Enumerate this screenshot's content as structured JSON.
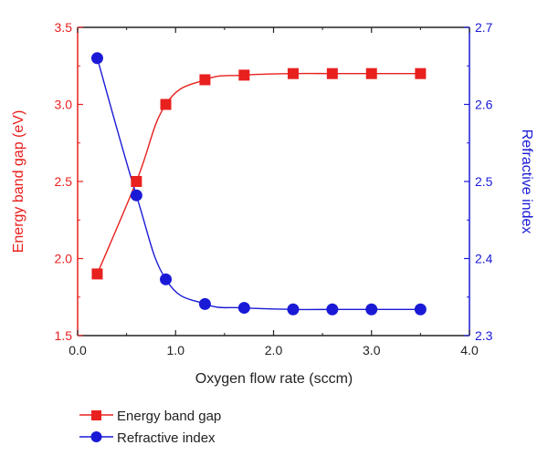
{
  "chart_data": {
    "type": "line",
    "xlabel": "Oxygen flow rate (sccm)",
    "xlim": [
      0.0,
      4.0
    ],
    "xticks": [
      "0.0",
      "1.0",
      "2.0",
      "3.0",
      "4.0"
    ],
    "y_left": {
      "label": "Energy band gap (eV)",
      "lim": [
        1.5,
        3.5
      ],
      "ticks": [
        "1.5",
        "2.0",
        "2.5",
        "3.0",
        "3.5"
      ],
      "color": "#e8201e"
    },
    "y_right": {
      "label": "Refractive index",
      "lim": [
        2.3,
        2.7
      ],
      "ticks": [
        "2.3",
        "2.4",
        "2.5",
        "2.6",
        "2.7"
      ],
      "color": "#1a1ad6"
    },
    "series": [
      {
        "name": "Energy band gap",
        "axis": "left",
        "marker": "square",
        "color": "#e8201e",
        "x": [
          0.2,
          0.6,
          0.9,
          1.3,
          1.7,
          2.2,
          2.6,
          3.0,
          3.5
        ],
        "y": [
          1.9,
          2.5,
          3.0,
          3.16,
          3.19,
          3.2,
          3.2,
          3.2,
          3.2
        ]
      },
      {
        "name": "Refractive index",
        "axis": "right",
        "marker": "circle",
        "color": "#1a1ad6",
        "x": [
          0.2,
          0.6,
          0.9,
          1.3,
          1.7,
          2.2,
          2.6,
          3.0,
          3.5
        ],
        "y": [
          2.66,
          2.482,
          2.373,
          2.341,
          2.336,
          2.334,
          2.334,
          2.334,
          2.334
        ]
      }
    ],
    "legend_position": "bottom-left",
    "grid": false
  }
}
